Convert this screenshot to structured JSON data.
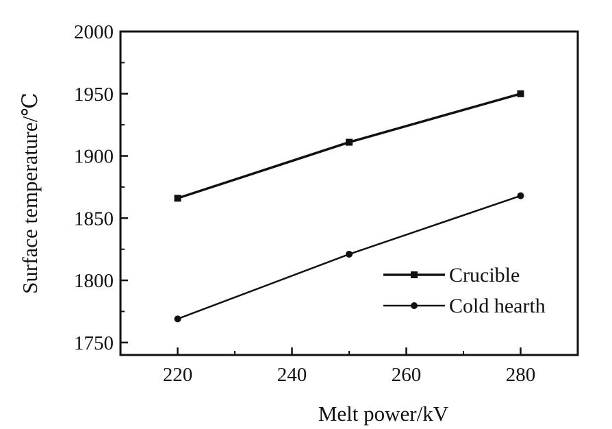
{
  "chart_data": {
    "type": "line",
    "title": "",
    "xlabel": "Melt power/kV",
    "ylabel": "Surface temperature/℃",
    "x_ticks": [
      "220",
      "240",
      "260",
      "280"
    ],
    "y_ticks": [
      "1750",
      "1800",
      "1850",
      "1900",
      "1950",
      "2000"
    ],
    "xlim": [
      210,
      290
    ],
    "ylim": [
      1740,
      2000
    ],
    "grid": false,
    "legend_position": "bottom-right",
    "series": [
      {
        "name": "Crucible",
        "marker": "square",
        "x": [
          220,
          250,
          280
        ],
        "y": [
          1866,
          1911,
          1950
        ]
      },
      {
        "name": "Cold hearth",
        "marker": "circle",
        "x": [
          220,
          250,
          280
        ],
        "y": [
          1769,
          1821,
          1868
        ]
      }
    ]
  }
}
